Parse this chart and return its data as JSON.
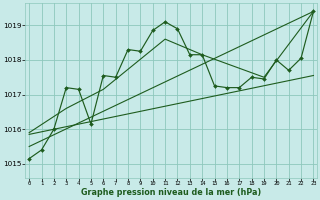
{
  "xlabel": "Graphe pression niveau de la mer (hPa)",
  "x_ticks": [
    0,
    1,
    2,
    3,
    4,
    5,
    6,
    7,
    8,
    9,
    10,
    11,
    12,
    13,
    14,
    15,
    16,
    17,
    18,
    19,
    20,
    21,
    22,
    23
  ],
  "xlim": [
    -0.3,
    23.3
  ],
  "ylim": [
    1014.6,
    1019.65
  ],
  "y_ticks": [
    1015,
    1016,
    1017,
    1018,
    1019
  ],
  "bg_color": "#c8eae8",
  "grid_color": "#8ec8bc",
  "line_color": "#1e5c1e",
  "main_x": [
    0,
    1,
    2,
    3,
    4,
    5,
    6,
    7,
    8,
    9,
    10,
    11,
    12,
    13,
    14,
    15,
    16,
    17,
    18,
    19,
    20,
    21,
    22,
    23
  ],
  "main_y": [
    1015.15,
    1015.4,
    1016.0,
    1017.2,
    1017.15,
    1016.15,
    1017.55,
    1017.5,
    1018.3,
    1018.25,
    1018.85,
    1019.1,
    1018.9,
    1018.15,
    1018.15,
    1017.25,
    1017.2,
    1017.2,
    1017.5,
    1017.45,
    1018.0,
    1017.7,
    1018.05,
    1019.4
  ],
  "trend1_x": [
    0,
    3,
    6,
    11,
    14,
    19,
    23
  ],
  "trend1_y": [
    1015.9,
    1016.6,
    1017.15,
    1018.6,
    1018.15,
    1017.5,
    1019.4
  ],
  "trend2_x": [
    0,
    23
  ],
  "trend2_y": [
    1015.5,
    1019.4
  ],
  "trend3_x": [
    0,
    23
  ],
  "trend3_y": [
    1015.85,
    1017.55
  ]
}
